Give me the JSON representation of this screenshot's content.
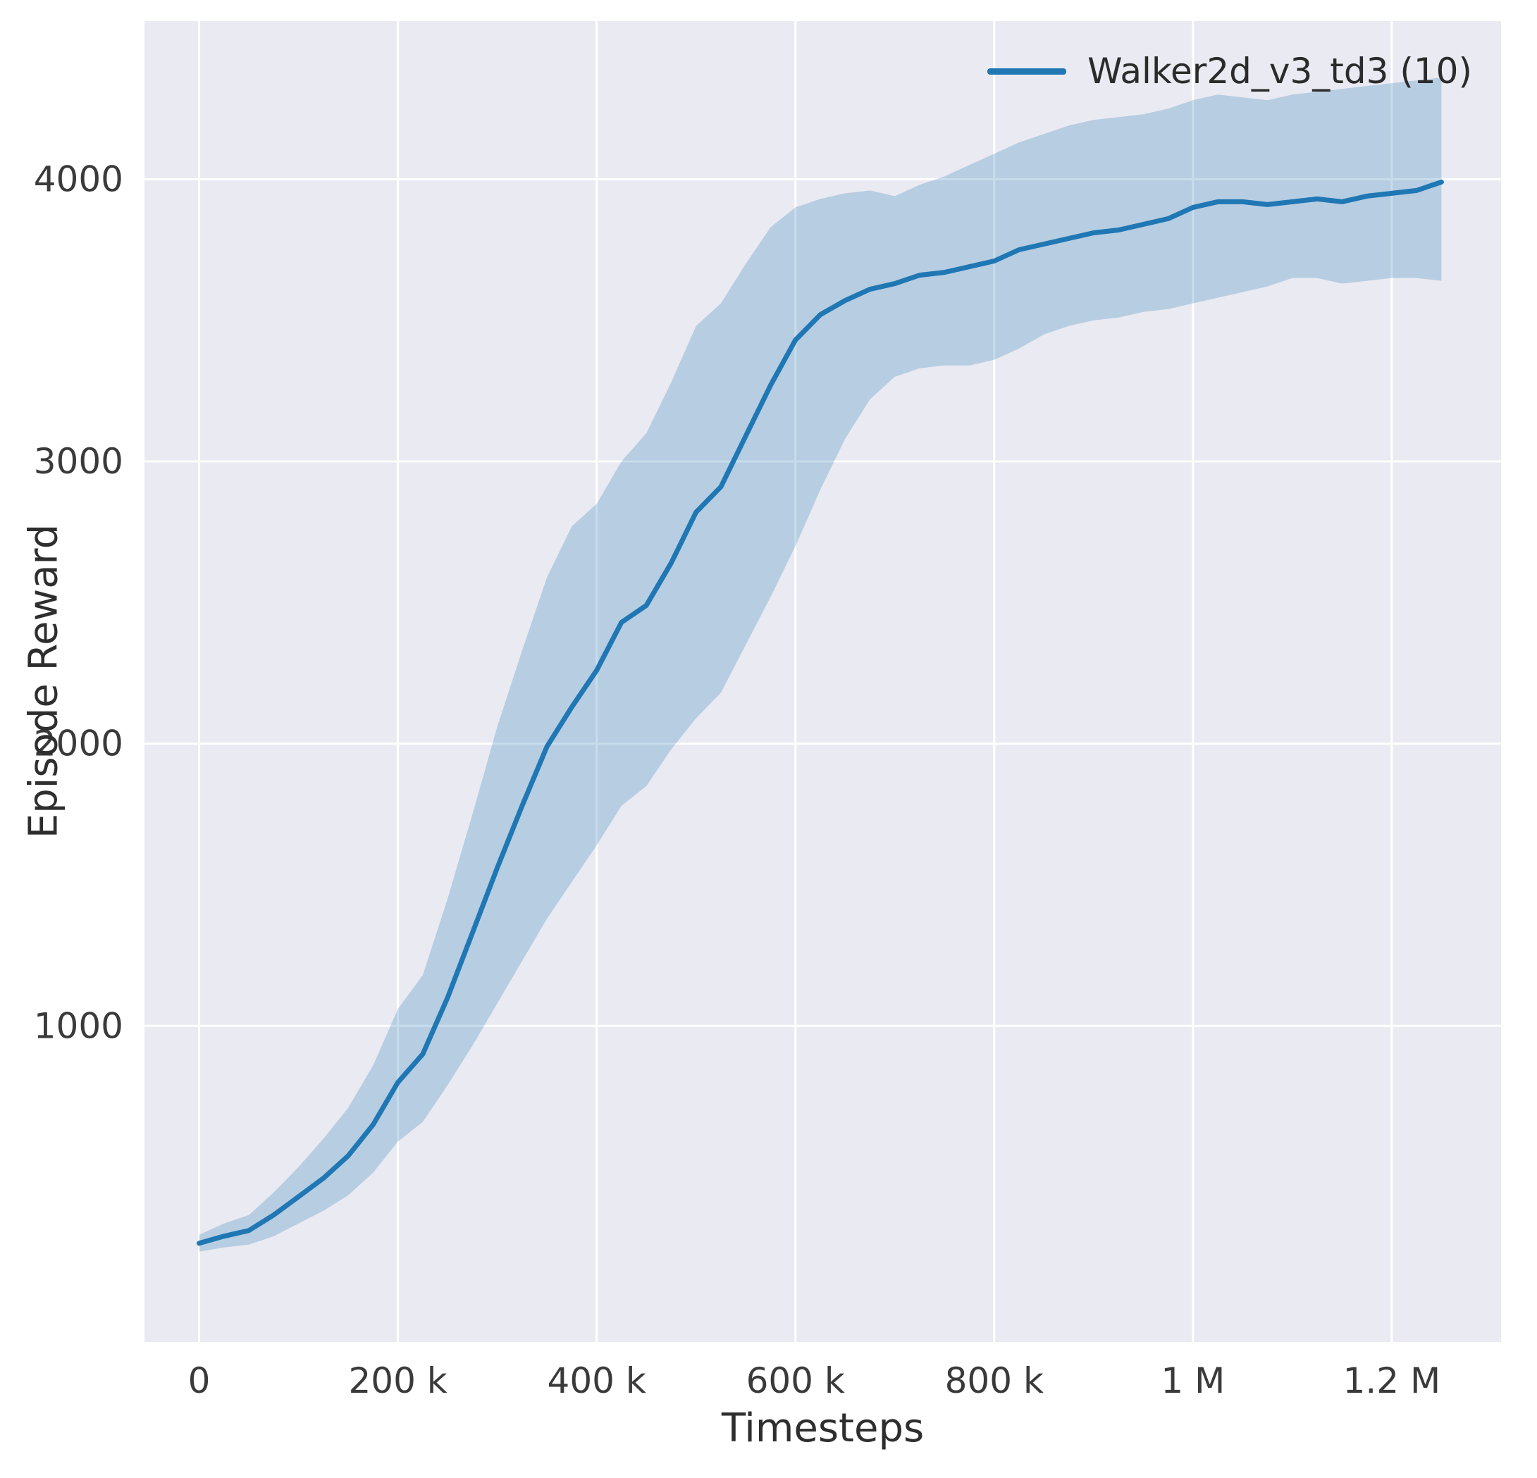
{
  "chart_data": {
    "type": "line",
    "title": "",
    "xlabel": "Timesteps",
    "ylabel": "Episode Reward",
    "grid": true,
    "plot_background": "#eaeaf2",
    "grid_color": "#ffffff",
    "xlim": [
      -55000,
      1310000
    ],
    "ylim": [
      -120,
      4560
    ],
    "x_ticks": {
      "values": [
        0,
        200000,
        400000,
        600000,
        800000,
        1000000,
        1200000
      ],
      "labels": [
        "0",
        "200 k",
        "400 k",
        "600 k",
        "800 k",
        "1 M",
        "1.2 M"
      ]
    },
    "y_ticks": {
      "values": [
        1000,
        2000,
        3000,
        4000
      ],
      "labels": [
        "1000",
        "2000",
        "3000",
        "4000"
      ]
    },
    "legend": {
      "position": "upper right",
      "entries": [
        {
          "label": "Walker2d_v3_td3 (10)",
          "color": "#1f77b4"
        }
      ]
    },
    "series": [
      {
        "name": "Walker2d_v3_td3 (10)",
        "color": "#1f77b4",
        "band_fill": "rgba(31,119,180,0.25)",
        "x": [
          0,
          25000,
          50000,
          75000,
          100000,
          125000,
          150000,
          175000,
          200000,
          225000,
          250000,
          275000,
          300000,
          325000,
          350000,
          375000,
          400000,
          425000,
          450000,
          475000,
          500000,
          525000,
          550000,
          575000,
          600000,
          625000,
          650000,
          675000,
          700000,
          725000,
          750000,
          775000,
          800000,
          825000,
          850000,
          875000,
          900000,
          925000,
          950000,
          975000,
          1000000,
          1025000,
          1050000,
          1075000,
          1100000,
          1125000,
          1150000,
          1175000,
          1200000,
          1225000,
          1250000
        ],
        "mean": [
          230,
          255,
          275,
          330,
          395,
          460,
          540,
          650,
          800,
          900,
          1100,
          1330,
          1560,
          1780,
          1990,
          2130,
          2260,
          2430,
          2490,
          2640,
          2820,
          2910,
          3090,
          3270,
          3430,
          3520,
          3570,
          3610,
          3630,
          3660,
          3670,
          3690,
          3710,
          3750,
          3770,
          3790,
          3810,
          3820,
          3840,
          3860,
          3900,
          3920,
          3920,
          3910,
          3920,
          3930,
          3920,
          3940,
          3950,
          3960,
          3990
        ],
        "lower": [
          200,
          215,
          225,
          255,
          300,
          345,
          400,
          480,
          590,
          660,
          790,
          930,
          1080,
          1230,
          1380,
          1510,
          1640,
          1780,
          1850,
          1980,
          2090,
          2180,
          2350,
          2520,
          2700,
          2900,
          3080,
          3220,
          3300,
          3330,
          3340,
          3340,
          3360,
          3400,
          3450,
          3480,
          3500,
          3510,
          3530,
          3540,
          3560,
          3580,
          3600,
          3620,
          3650,
          3650,
          3630,
          3640,
          3650,
          3650,
          3640
        ],
        "upper": [
          260,
          300,
          330,
          410,
          500,
          600,
          710,
          860,
          1060,
          1180,
          1450,
          1750,
          2060,
          2330,
          2590,
          2770,
          2850,
          3000,
          3100,
          3280,
          3480,
          3560,
          3700,
          3830,
          3900,
          3930,
          3950,
          3960,
          3940,
          3980,
          4010,
          4050,
          4090,
          4130,
          4160,
          4190,
          4210,
          4220,
          4230,
          4250,
          4280,
          4300,
          4290,
          4280,
          4300,
          4310,
          4320,
          4330,
          4340,
          4350,
          4360
        ]
      }
    ]
  }
}
